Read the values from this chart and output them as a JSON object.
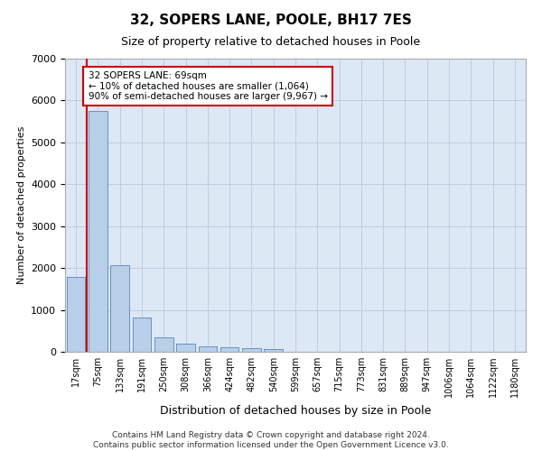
{
  "title_line1": "32, SOPERS LANE, POOLE, BH17 7ES",
  "title_line2": "Size of property relative to detached houses in Poole",
  "xlabel": "Distribution of detached houses by size in Poole",
  "ylabel": "Number of detached properties",
  "bin_labels": [
    "17sqm",
    "75sqm",
    "133sqm",
    "191sqm",
    "250sqm",
    "308sqm",
    "366sqm",
    "424sqm",
    "482sqm",
    "540sqm",
    "599sqm",
    "657sqm",
    "715sqm",
    "773sqm",
    "831sqm",
    "889sqm",
    "947sqm",
    "1006sqm",
    "1064sqm",
    "1122sqm",
    "1180sqm"
  ],
  "bar_values": [
    1780,
    5760,
    2060,
    820,
    340,
    185,
    120,
    105,
    95,
    70,
    0,
    0,
    0,
    0,
    0,
    0,
    0,
    0,
    0,
    0,
    0
  ],
  "bar_color": "#b8cfe8",
  "bar_edge_color": "#5588bb",
  "annotation_text": "32 SOPERS LANE: 69sqm\n← 10% of detached houses are smaller (1,064)\n90% of semi-detached houses are larger (9,967) →",
  "annotation_box_color": "#ffffff",
  "annotation_border_color": "#cc0000",
  "ylim": [
    0,
    7000
  ],
  "yticks": [
    0,
    1000,
    2000,
    3000,
    4000,
    5000,
    6000,
    7000
  ],
  "background_color": "#dde8f5",
  "footer_line1": "Contains HM Land Registry data © Crown copyright and database right 2024.",
  "footer_line2": "Contains public sector information licensed under the Open Government Licence v3.0.",
  "vline_color": "#cc0000",
  "figsize": [
    6.0,
    5.0
  ],
  "dpi": 100
}
